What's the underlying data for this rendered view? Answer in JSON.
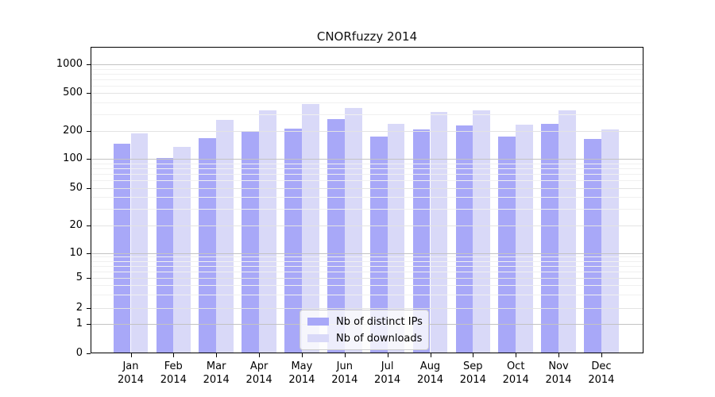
{
  "title": "CNORfuzzy 2014",
  "legend": {
    "items": [
      {
        "label": "Nb of distinct IPs",
        "color": "#a8a8f8"
      },
      {
        "label": "Nb of downloads",
        "color": "#d9d9f8"
      }
    ]
  },
  "chart_data": {
    "type": "bar",
    "title": "CNORfuzzy 2014",
    "categories": [
      "Jan 2014",
      "Feb 2014",
      "Mar 2014",
      "Apr 2014",
      "May 2014",
      "Jun 2014",
      "Jul 2014",
      "Aug 2014",
      "Sep 2014",
      "Oct 2014",
      "Nov 2014",
      "Dec 2014"
    ],
    "series": [
      {
        "name": "Nb of distinct IPs",
        "color": "#a8a8f8",
        "values": [
          145,
          103,
          168,
          202,
          211,
          267,
          175,
          207,
          229,
          176,
          237,
          164
        ]
      },
      {
        "name": "Nb of downloads",
        "color": "#d9d9f8",
        "values": [
          190,
          135,
          262,
          330,
          381,
          350,
          238,
          315,
          327,
          234,
          327,
          207
        ]
      }
    ],
    "xlabel": "",
    "ylabel": "",
    "yaxis": {
      "scale": "symlog",
      "ticks": [
        0,
        1,
        2,
        5,
        10,
        20,
        50,
        100,
        200,
        500,
        1000
      ],
      "minor_gridlines": [
        3,
        4,
        6,
        7,
        8,
        9,
        30,
        40,
        60,
        70,
        80,
        90,
        300,
        400,
        600,
        700,
        800,
        900
      ],
      "decade_gridlines": [
        1,
        10,
        100,
        1000
      ]
    },
    "grid": true,
    "legend_position": "lower center"
  }
}
